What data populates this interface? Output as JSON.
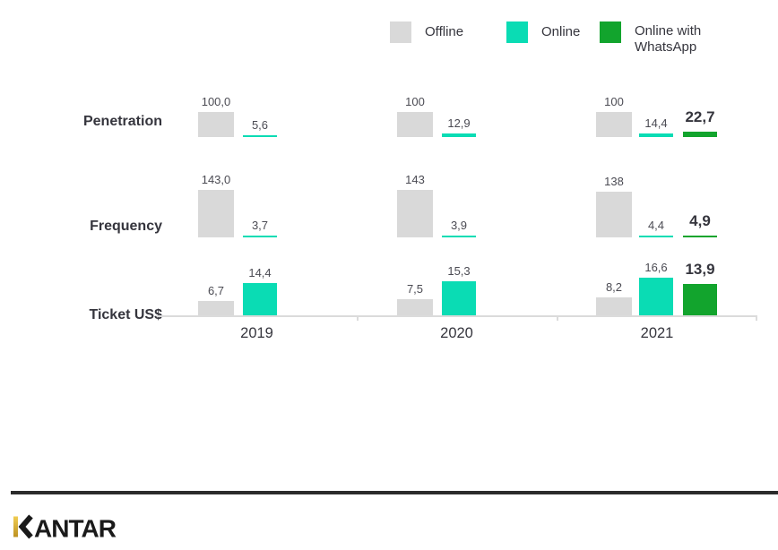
{
  "legend": {
    "items": [
      {
        "key": "offline",
        "label": "Offline",
        "color": "#D9D9D9"
      },
      {
        "key": "online",
        "label": "Online",
        "color": "#0ADCB4"
      },
      {
        "key": "online-whatsapp",
        "label": "Online with WhatsApp",
        "color": "#12A42D"
      }
    ]
  },
  "chart_data": {
    "type": "bar",
    "categories": [
      "2019",
      "2020",
      "2021"
    ],
    "legend_position": "top-right",
    "grid": false,
    "value_format": "comma-decimal",
    "rows": [
      {
        "metric": "Penetration",
        "series": [
          {
            "name": "Offline",
            "values": [
              100.0,
              100,
              100
            ],
            "labels": [
              "100,0",
              "100",
              "100"
            ]
          },
          {
            "name": "Online",
            "values": [
              5.6,
              12.9,
              14.4
            ],
            "labels": [
              "5,6",
              "12,9",
              "14,4"
            ]
          },
          {
            "name": "Online with WhatsApp",
            "values": [
              null,
              null,
              22.7
            ],
            "labels": [
              null,
              null,
              "22,7"
            ]
          }
        ]
      },
      {
        "metric": "Frequency",
        "series": [
          {
            "name": "Offline",
            "values": [
              143.0,
              143,
              138
            ],
            "labels": [
              "143,0",
              "143",
              "138"
            ]
          },
          {
            "name": "Online",
            "values": [
              3.7,
              3.9,
              4.4
            ],
            "labels": [
              "3,7",
              "3,9",
              "4,4"
            ]
          },
          {
            "name": "Online with WhatsApp",
            "values": [
              null,
              null,
              4.9
            ],
            "labels": [
              null,
              null,
              "4,9"
            ]
          }
        ]
      },
      {
        "metric": "Ticket US$",
        "series": [
          {
            "name": "Offline",
            "values": [
              6.7,
              7.5,
              8.2
            ],
            "labels": [
              "6,7",
              "7,5",
              "8,2"
            ]
          },
          {
            "name": "Online",
            "values": [
              14.4,
              15.3,
              16.6
            ],
            "labels": [
              "14,4",
              "15,3",
              "16,6"
            ]
          },
          {
            "name": "Online with WhatsApp",
            "values": [
              null,
              null,
              13.9
            ],
            "labels": [
              null,
              null,
              "13,9"
            ]
          }
        ]
      }
    ]
  },
  "footer": {
    "brand": "KANTAR"
  }
}
